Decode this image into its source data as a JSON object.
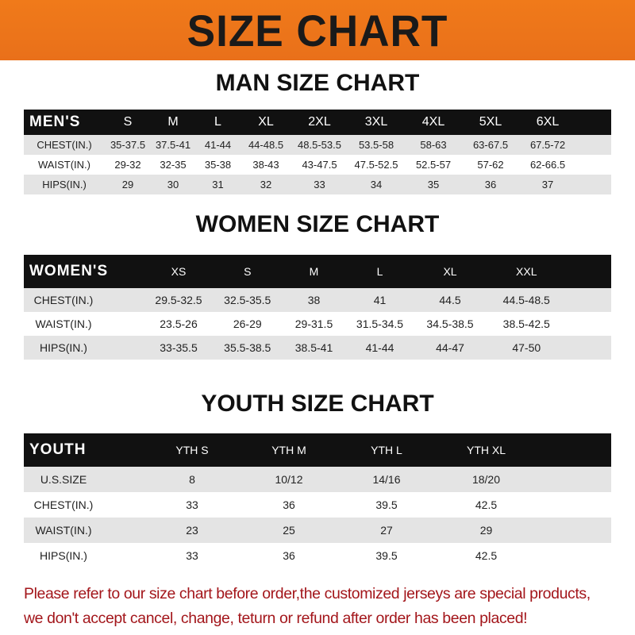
{
  "banner": "SIZE CHART",
  "men": {
    "title": "MAN SIZE CHART",
    "header": [
      "MEN'S",
      "S",
      "M",
      "L",
      "XL",
      "2XL",
      "3XL",
      "4XL",
      "5XL",
      "6XL"
    ],
    "rows": [
      [
        "CHEST(IN.)",
        "35-37.5",
        "37.5-41",
        "41-44",
        "44-48.5",
        "48.5-53.5",
        "53.5-58",
        "58-63",
        "63-67.5",
        "67.5-72"
      ],
      [
        "WAIST(IN.)",
        "29-32",
        "32-35",
        "35-38",
        "38-43",
        "43-47.5",
        "47.5-52.5",
        "52.5-57",
        "57-62",
        "62-66.5"
      ],
      [
        "HIPS(IN.)",
        "29",
        "30",
        "31",
        "32",
        "33",
        "34",
        "35",
        "36",
        "37"
      ]
    ]
  },
  "women": {
    "title": "WOMEN SIZE CHART",
    "header": [
      "WOMEN'S",
      "XS",
      "S",
      "M",
      "L",
      "XL",
      "XXL"
    ],
    "rows": [
      [
        "CHEST(IN.)",
        "29.5-32.5",
        "32.5-35.5",
        "38",
        "41",
        "44.5",
        "44.5-48.5"
      ],
      [
        "WAIST(IN.)",
        "23.5-26",
        "26-29",
        "29-31.5",
        "31.5-34.5",
        "34.5-38.5",
        "38.5-42.5"
      ],
      [
        "HIPS(IN.)",
        "33-35.5",
        "35.5-38.5",
        "38.5-41",
        "41-44",
        "44-47",
        "47-50"
      ]
    ]
  },
  "youth": {
    "title": "YOUTH SIZE CHART",
    "header": [
      "YOUTH",
      "YTH S",
      "YTH M",
      "YTH L",
      "YTH XL"
    ],
    "rows": [
      [
        "U.S.SIZE",
        "8",
        "10/12",
        "14/16",
        "18/20"
      ],
      [
        "CHEST(IN.)",
        "33",
        "36",
        "39.5",
        "42.5"
      ],
      [
        "WAIST(IN.)",
        "23",
        "25",
        "27",
        "29"
      ],
      [
        "HIPS(IN.)",
        "33",
        "36",
        "39.5",
        "42.5"
      ]
    ]
  },
  "note": {
    "line1": "Please refer to our size chart before order,the customized jerseys are special products,",
    "line2": "we don't accept cancel, change, teturn or refund after order has been placed!"
  },
  "colors": {
    "banner": "#f07a1a",
    "header_row": "#111111",
    "stripe": "#e4e4e4",
    "note": "#a3161b"
  }
}
